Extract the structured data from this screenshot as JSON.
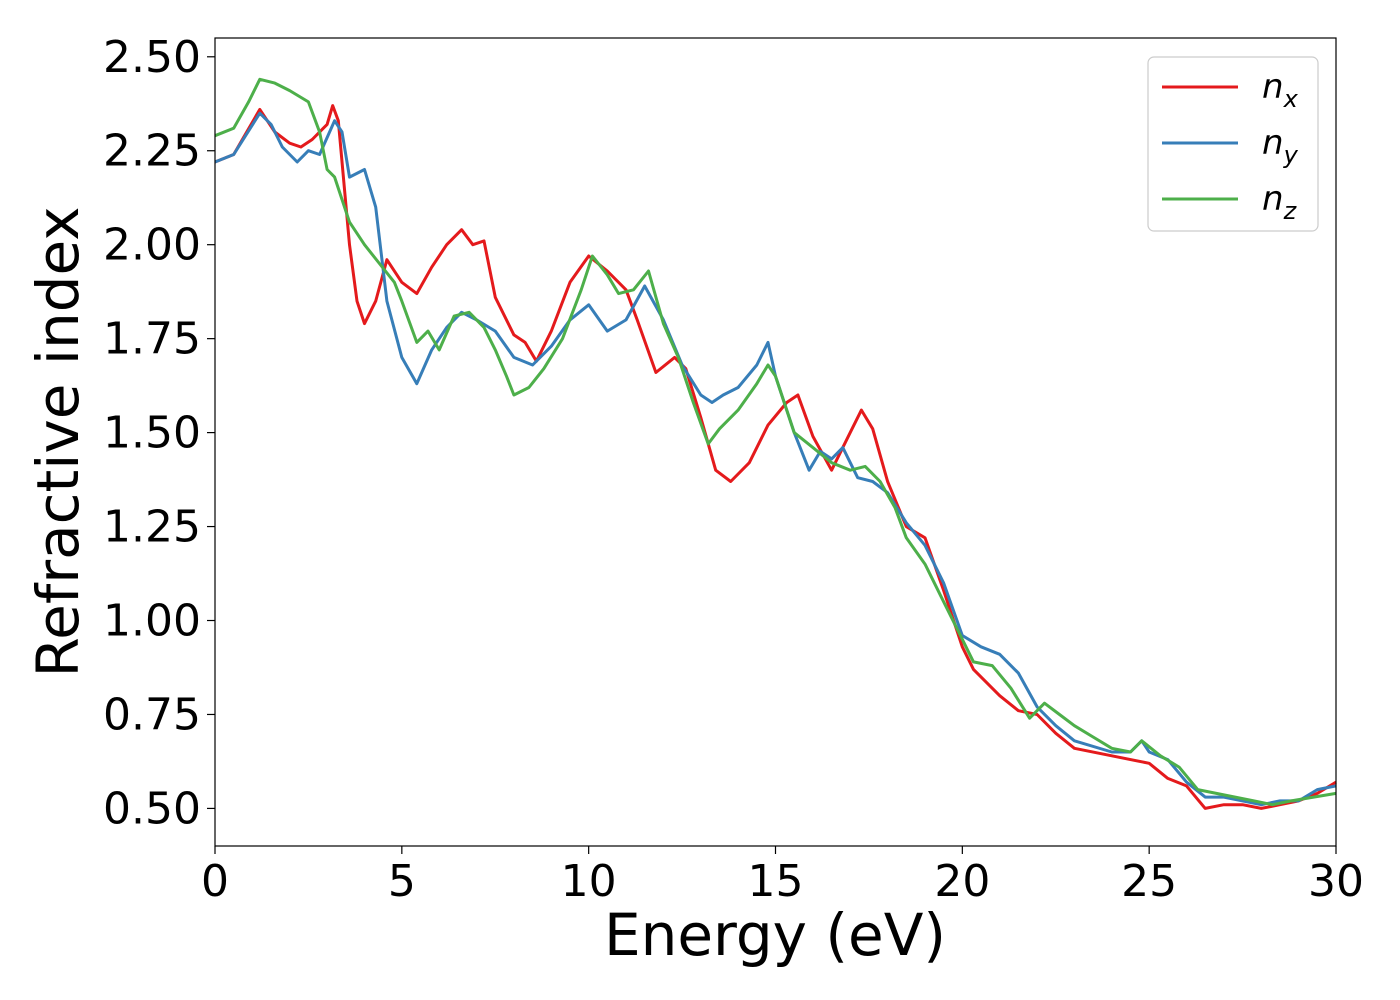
{
  "chart_data": {
    "type": "line",
    "title": "",
    "xlabel": "Energy (eV)",
    "ylabel": "Refractive index",
    "xlim": [
      0,
      30
    ],
    "ylim": [
      0.4,
      2.55
    ],
    "xticks": [
      0,
      5,
      10,
      15,
      20,
      25,
      30
    ],
    "xtick_labels": [
      "0",
      "5",
      "10",
      "15",
      "20",
      "25",
      "30"
    ],
    "yticks": [
      0.5,
      0.75,
      1.0,
      1.25,
      1.5,
      1.75,
      2.0,
      2.25,
      2.5
    ],
    "ytick_labels": [
      "0.50",
      "0.75",
      "1.00",
      "1.25",
      "1.50",
      "1.75",
      "2.00",
      "2.25",
      "2.50"
    ],
    "grid": false,
    "legend_position": "top-right",
    "series": [
      {
        "name": "n_x",
        "legend_base": "n",
        "legend_sub": "x",
        "color": "#e41a1c",
        "points": [
          [
            0,
            2.22
          ],
          [
            0.5,
            2.24
          ],
          [
            1.2,
            2.36
          ],
          [
            1.6,
            2.3
          ],
          [
            2.0,
            2.27
          ],
          [
            2.3,
            2.26
          ],
          [
            2.6,
            2.28
          ],
          [
            3.0,
            2.32
          ],
          [
            3.15,
            2.37
          ],
          [
            3.3,
            2.33
          ],
          [
            3.6,
            2.0
          ],
          [
            3.8,
            1.85
          ],
          [
            4.0,
            1.79
          ],
          [
            4.3,
            1.85
          ],
          [
            4.6,
            1.96
          ],
          [
            5.0,
            1.9
          ],
          [
            5.4,
            1.87
          ],
          [
            5.8,
            1.94
          ],
          [
            6.2,
            2.0
          ],
          [
            6.6,
            2.04
          ],
          [
            6.9,
            2.0
          ],
          [
            7.2,
            2.01
          ],
          [
            7.5,
            1.86
          ],
          [
            8.0,
            1.76
          ],
          [
            8.3,
            1.74
          ],
          [
            8.6,
            1.69
          ],
          [
            9.0,
            1.77
          ],
          [
            9.5,
            1.9
          ],
          [
            10.0,
            1.97
          ],
          [
            10.5,
            1.93
          ],
          [
            11.0,
            1.88
          ],
          [
            11.3,
            1.8
          ],
          [
            11.8,
            1.66
          ],
          [
            12.3,
            1.7
          ],
          [
            12.6,
            1.67
          ],
          [
            13.0,
            1.54
          ],
          [
            13.4,
            1.4
          ],
          [
            13.8,
            1.37
          ],
          [
            14.3,
            1.42
          ],
          [
            14.8,
            1.52
          ],
          [
            15.3,
            1.58
          ],
          [
            15.6,
            1.6
          ],
          [
            16.0,
            1.49
          ],
          [
            16.5,
            1.4
          ],
          [
            17.0,
            1.5
          ],
          [
            17.3,
            1.56
          ],
          [
            17.6,
            1.51
          ],
          [
            18.0,
            1.37
          ],
          [
            18.5,
            1.25
          ],
          [
            19.0,
            1.22
          ],
          [
            19.5,
            1.08
          ],
          [
            20.0,
            0.93
          ],
          [
            20.3,
            0.87
          ],
          [
            21.0,
            0.8
          ],
          [
            21.5,
            0.76
          ],
          [
            22.0,
            0.75
          ],
          [
            22.5,
            0.7
          ],
          [
            23.0,
            0.66
          ],
          [
            24.0,
            0.64
          ],
          [
            25.0,
            0.62
          ],
          [
            25.5,
            0.58
          ],
          [
            26.0,
            0.56
          ],
          [
            26.5,
            0.5
          ],
          [
            27.0,
            0.51
          ],
          [
            27.5,
            0.51
          ],
          [
            28.0,
            0.5
          ],
          [
            28.5,
            0.51
          ],
          [
            29.0,
            0.52
          ],
          [
            29.5,
            0.54
          ],
          [
            30,
            0.57
          ]
        ]
      },
      {
        "name": "n_y",
        "legend_base": "n",
        "legend_sub": "y",
        "color": "#377eb8",
        "points": [
          [
            0,
            2.22
          ],
          [
            0.5,
            2.24
          ],
          [
            1.2,
            2.35
          ],
          [
            1.5,
            2.32
          ],
          [
            1.8,
            2.26
          ],
          [
            2.2,
            2.22
          ],
          [
            2.5,
            2.25
          ],
          [
            2.8,
            2.24
          ],
          [
            3.2,
            2.33
          ],
          [
            3.4,
            2.3
          ],
          [
            3.6,
            2.18
          ],
          [
            4.0,
            2.2
          ],
          [
            4.3,
            2.1
          ],
          [
            4.6,
            1.85
          ],
          [
            5.0,
            1.7
          ],
          [
            5.4,
            1.63
          ],
          [
            5.8,
            1.72
          ],
          [
            6.2,
            1.78
          ],
          [
            6.6,
            1.82
          ],
          [
            7.0,
            1.8
          ],
          [
            7.5,
            1.77
          ],
          [
            8.0,
            1.7
          ],
          [
            8.5,
            1.68
          ],
          [
            9.0,
            1.73
          ],
          [
            9.5,
            1.8
          ],
          [
            10.0,
            1.84
          ],
          [
            10.5,
            1.77
          ],
          [
            11.0,
            1.8
          ],
          [
            11.5,
            1.89
          ],
          [
            12.0,
            1.8
          ],
          [
            12.5,
            1.68
          ],
          [
            13.0,
            1.6
          ],
          [
            13.3,
            1.58
          ],
          [
            13.6,
            1.6
          ],
          [
            14.0,
            1.62
          ],
          [
            14.5,
            1.68
          ],
          [
            14.8,
            1.74
          ],
          [
            15.0,
            1.65
          ],
          [
            15.5,
            1.5
          ],
          [
            15.9,
            1.4
          ],
          [
            16.2,
            1.45
          ],
          [
            16.5,
            1.43
          ],
          [
            16.8,
            1.46
          ],
          [
            17.2,
            1.38
          ],
          [
            17.6,
            1.37
          ],
          [
            18.0,
            1.34
          ],
          [
            18.5,
            1.26
          ],
          [
            19.0,
            1.2
          ],
          [
            19.5,
            1.1
          ],
          [
            20.0,
            0.96
          ],
          [
            20.5,
            0.93
          ],
          [
            21.0,
            0.91
          ],
          [
            21.5,
            0.86
          ],
          [
            22.0,
            0.77
          ],
          [
            22.5,
            0.72
          ],
          [
            23.0,
            0.68
          ],
          [
            24.0,
            0.65
          ],
          [
            24.5,
            0.65
          ],
          [
            24.8,
            0.68
          ],
          [
            25.0,
            0.65
          ],
          [
            25.5,
            0.63
          ],
          [
            26.0,
            0.57
          ],
          [
            26.5,
            0.53
          ],
          [
            27.0,
            0.53
          ],
          [
            27.5,
            0.52
          ],
          [
            28.0,
            0.51
          ],
          [
            28.5,
            0.52
          ],
          [
            29.0,
            0.52
          ],
          [
            29.5,
            0.55
          ],
          [
            30,
            0.56
          ]
        ]
      },
      {
        "name": "n_z",
        "legend_base": "n",
        "legend_sub": "z",
        "color": "#4daf4a",
        "points": [
          [
            0,
            2.29
          ],
          [
            0.5,
            2.31
          ],
          [
            0.9,
            2.38
          ],
          [
            1.2,
            2.44
          ],
          [
            1.6,
            2.43
          ],
          [
            2.0,
            2.41
          ],
          [
            2.5,
            2.38
          ],
          [
            2.8,
            2.3
          ],
          [
            3.0,
            2.2
          ],
          [
            3.2,
            2.18
          ],
          [
            3.6,
            2.06
          ],
          [
            4.0,
            2.0
          ],
          [
            4.4,
            1.95
          ],
          [
            4.8,
            1.9
          ],
          [
            5.0,
            1.85
          ],
          [
            5.4,
            1.74
          ],
          [
            5.7,
            1.77
          ],
          [
            6.0,
            1.72
          ],
          [
            6.4,
            1.81
          ],
          [
            6.8,
            1.82
          ],
          [
            7.2,
            1.78
          ],
          [
            7.5,
            1.72
          ],
          [
            7.8,
            1.65
          ],
          [
            8.0,
            1.6
          ],
          [
            8.4,
            1.62
          ],
          [
            8.8,
            1.67
          ],
          [
            9.3,
            1.75
          ],
          [
            9.8,
            1.88
          ],
          [
            10.1,
            1.97
          ],
          [
            10.5,
            1.92
          ],
          [
            10.8,
            1.87
          ],
          [
            11.2,
            1.88
          ],
          [
            11.6,
            1.93
          ],
          [
            12.0,
            1.79
          ],
          [
            12.4,
            1.7
          ],
          [
            12.8,
            1.58
          ],
          [
            13.2,
            1.47
          ],
          [
            13.5,
            1.51
          ],
          [
            14.0,
            1.56
          ],
          [
            14.5,
            1.63
          ],
          [
            14.8,
            1.68
          ],
          [
            15.0,
            1.65
          ],
          [
            15.5,
            1.5
          ],
          [
            16.0,
            1.46
          ],
          [
            16.5,
            1.42
          ],
          [
            17.0,
            1.4
          ],
          [
            17.4,
            1.41
          ],
          [
            17.8,
            1.37
          ],
          [
            18.2,
            1.3
          ],
          [
            18.5,
            1.22
          ],
          [
            19.0,
            1.15
          ],
          [
            19.5,
            1.05
          ],
          [
            20.0,
            0.95
          ],
          [
            20.3,
            0.89
          ],
          [
            20.8,
            0.88
          ],
          [
            21.3,
            0.82
          ],
          [
            21.8,
            0.74
          ],
          [
            22.2,
            0.78
          ],
          [
            22.6,
            0.75
          ],
          [
            23.0,
            0.72
          ],
          [
            23.5,
            0.69
          ],
          [
            24.0,
            0.66
          ],
          [
            24.5,
            0.65
          ],
          [
            24.8,
            0.68
          ],
          [
            25.3,
            0.64
          ],
          [
            25.8,
            0.61
          ],
          [
            26.3,
            0.55
          ],
          [
            26.8,
            0.54
          ],
          [
            27.3,
            0.53
          ],
          [
            27.8,
            0.52
          ],
          [
            28.3,
            0.51
          ],
          [
            28.8,
            0.52
          ],
          [
            29.4,
            0.53
          ],
          [
            30,
            0.54
          ]
        ]
      }
    ]
  }
}
